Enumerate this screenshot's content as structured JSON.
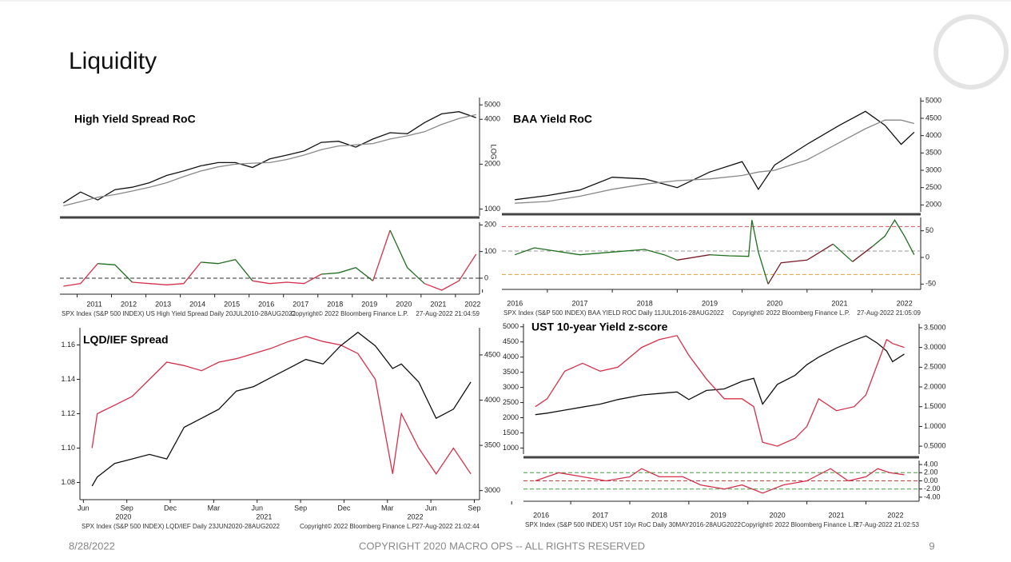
{
  "slide": {
    "title": "Liquidity",
    "date": "8/28/2022",
    "copyright": "COPYRIGHT 2020 MACRO OPS -- ALL RIGHTS RESERVED",
    "page": "9"
  },
  "chart_data": [
    {
      "type": "line",
      "title": "High Yield Spread RoC",
      "axis_note": "LOG",
      "yscale": "log",
      "yaxis_side": "right",
      "x": [
        2010.6,
        2011.1,
        2011.6,
        2012.1,
        2012.6,
        2013.1,
        2013.6,
        2014.1,
        2014.6,
        2015.1,
        2015.6,
        2016.1,
        2016.6,
        2017.1,
        2017.6,
        2018.1,
        2018.6,
        2019.1,
        2019.6,
        2020.1,
        2020.6,
        2021.1,
        2021.6,
        2022.1,
        2022.6
      ],
      "xlim": [
        2010.5,
        2022.7
      ],
      "ylim": [
        900,
        5600
      ],
      "yticks": [
        1000,
        2000,
        4000,
        5000
      ],
      "series": [
        {
          "color": "#111111",
          "values": [
            1100,
            1300,
            1150,
            1350,
            1400,
            1500,
            1680,
            1800,
            1950,
            2050,
            2050,
            1900,
            2170,
            2300,
            2450,
            2800,
            2850,
            2600,
            2950,
            3250,
            3200,
            3800,
            4350,
            4500,
            4100
          ]
        },
        {
          "color": "#888888",
          "values": [
            1050,
            1120,
            1200,
            1250,
            1320,
            1400,
            1500,
            1650,
            1800,
            1920,
            2000,
            2030,
            2050,
            2150,
            2300,
            2500,
            2650,
            2700,
            2750,
            2950,
            3100,
            3300,
            3700,
            4050,
            4300
          ]
        }
      ]
    },
    {
      "type": "signed_line",
      "yaxis_side": "right",
      "x": [
        2010.6,
        2011.1,
        2011.6,
        2012.1,
        2012.6,
        2013.1,
        2013.6,
        2014.1,
        2014.6,
        2015.1,
        2015.6,
        2016.1,
        2016.6,
        2017.1,
        2017.6,
        2018.1,
        2018.6,
        2019.1,
        2019.6,
        2020.1,
        2020.6,
        2021.1,
        2021.6,
        2022.1,
        2022.6
      ],
      "xlim": [
        2010.5,
        2022.7
      ],
      "ylim": [
        -60,
        210
      ],
      "yticks": [
        0,
        100,
        200
      ],
      "xticks": [
        2011,
        2012,
        2013,
        2014,
        2015,
        2016,
        2017,
        2018,
        2019,
        2020,
        2021,
        2022
      ],
      "reference_lines": [
        {
          "value": 0,
          "color": "#333333"
        }
      ],
      "series": [
        {
          "color_positive": "#1f6e1f",
          "color_negative": "#d6304a",
          "values": [
            -30,
            -20,
            55,
            50,
            -15,
            -20,
            -25,
            -20,
            60,
            55,
            70,
            -10,
            -20,
            -15,
            -20,
            15,
            20,
            40,
            -10,
            180,
            40,
            -20,
            -45,
            -10,
            90
          ]
        }
      ],
      "source": "SPX Index (S&P 500 INDEX) US High Yield Spread  Daily 20JUL2010-28AUG2022",
      "source_copyright": "Copyright© 2022 Bloomberg Finance L.P.",
      "timestamp": "27-Aug-2022 21:04:59"
    },
    {
      "type": "line",
      "title": "BAA Yield RoC",
      "yaxis_side": "right",
      "x": [
        2016.5,
        2017,
        2017.5,
        2018,
        2018.5,
        2019,
        2019.5,
        2020,
        2020.25,
        2020.5,
        2021,
        2021.5,
        2021.9,
        2022.2,
        2022.45,
        2022.65
      ],
      "xlim": [
        2016.3,
        2022.75
      ],
      "ylim": [
        1800,
        5100
      ],
      "yticks": [
        2000,
        2500,
        3000,
        3500,
        4000,
        4500,
        5000
      ],
      "series": [
        {
          "color": "#111111",
          "values": [
            2150,
            2270,
            2430,
            2800,
            2750,
            2500,
            2950,
            3250,
            2450,
            3150,
            3750,
            4300,
            4700,
            4300,
            3750,
            4100
          ]
        },
        {
          "color": "#888888",
          "values": [
            2050,
            2100,
            2250,
            2450,
            2600,
            2700,
            2750,
            2850,
            2950,
            3000,
            3300,
            3800,
            4200,
            4450,
            4450,
            4350
          ]
        }
      ]
    },
    {
      "type": "signed_line",
      "yaxis_side": "right",
      "x": [
        2016.5,
        2016.8,
        2017.5,
        2018,
        2018.5,
        2018.8,
        2019,
        2019.5,
        2019.8,
        2020.1,
        2020.15,
        2020.25,
        2020.4,
        2020.6,
        2021,
        2021.4,
        2021.7,
        2022,
        2022.2,
        2022.35,
        2022.5,
        2022.65
      ],
      "xlim": [
        2016.3,
        2022.75
      ],
      "ylim": [
        -60,
        75
      ],
      "yticks": [
        -50,
        0,
        50
      ],
      "xticks": [
        2016,
        2017,
        2018,
        2019,
        2020,
        2021,
        2022
      ],
      "reference_lines": [
        {
          "value": 58,
          "color": "#e05060"
        },
        {
          "value": 12,
          "color": "#999999"
        },
        {
          "value": -32,
          "color": "#e0a040"
        }
      ],
      "series": [
        {
          "color_positive": "#1f6e1f",
          "color_negative": "#7a1a2a",
          "values": [
            5,
            18,
            5,
            10,
            15,
            5,
            -5,
            5,
            3,
            2,
            70,
            10,
            -50,
            -10,
            -5,
            25,
            -8,
            20,
            40,
            70,
            40,
            5
          ]
        }
      ],
      "source": "SPX Index (S&P 500 INDEX) BAA YIELD ROC  Daily 11JUL2016-28AUG2022",
      "source_copyright": "Copyright© 2022 Bloomberg Finance L.P.",
      "timestamp": "27-Aug-2022 21:05:09"
    },
    {
      "type": "line",
      "title": "LQD/IEF Spread",
      "yaxis_side": "left",
      "x": [
        2020.47,
        2020.5,
        2020.6,
        2020.7,
        2020.8,
        2020.9,
        2021.0,
        2021.1,
        2021.2,
        2021.3,
        2021.4,
        2021.5,
        2021.6,
        2021.7,
        2021.8,
        2021.9,
        2022.0,
        2022.1,
        2022.2,
        2022.25,
        2022.35,
        2022.45,
        2022.55,
        2022.65
      ],
      "xlim": [
        2020.4,
        2022.7
      ],
      "ylim": [
        1.07,
        1.17
      ],
      "yticks": [
        1.08,
        {
          "value": 1.1,
          "label": "1.10"
        },
        1.12,
        1.14,
        1.16
      ],
      "y2lim": [
        2900,
        4800
      ],
      "y2ticks": [
        3000,
        3500,
        4000,
        4500
      ],
      "xticks": [
        {
          "value": 2020.42,
          "label": "Jun"
        },
        {
          "value": 2020.67,
          "label": "Sep"
        },
        {
          "value": 2020.92,
          "label": "Dec"
        },
        {
          "value": 2021.17,
          "label": "Mar"
        },
        {
          "value": 2021.42,
          "label": "Jun"
        },
        {
          "value": 2021.67,
          "label": "Sep"
        },
        {
          "value": 2021.92,
          "label": "Dec"
        },
        {
          "value": 2022.17,
          "label": "Mar"
        },
        {
          "value": 2022.42,
          "label": "Jun"
        },
        {
          "value": 2022.67,
          "label": "Sep"
        }
      ],
      "xticks_major": [
        {
          "value": 2020.65,
          "label": "2020"
        },
        {
          "value": 2021.46,
          "label": "2021"
        },
        {
          "value": 2022.33,
          "label": "2022"
        }
      ],
      "series": [
        {
          "color": "#d6304a",
          "values": [
            1.1,
            1.12,
            1.125,
            1.13,
            1.14,
            1.15,
            1.148,
            1.145,
            1.15,
            1.152,
            1.155,
            1.158,
            1.162,
            1.165,
            1.162,
            1.16,
            1.155,
            1.14,
            1.085,
            1.12,
            1.1,
            1.085,
            1.1,
            1.085
          ]
        },
        {
          "color": "#111111",
          "axis": "y2",
          "values": [
            3050,
            3150,
            3300,
            3350,
            3400,
            3350,
            3700,
            3800,
            3900,
            4100,
            4150,
            4250,
            4350,
            4450,
            4400,
            4600,
            4750,
            4600,
            4350,
            4400,
            4200,
            3800,
            3900,
            4200
          ]
        }
      ],
      "source": "SPX Index (S&P 500 INDEX) LQD/IEF  Daily 23JUN2020-28AUG2022",
      "source_copyright": "Copyright© 2022 Bloomberg Finance L.P.",
      "timestamp": "27-Aug-2022 21:02:44"
    },
    {
      "type": "line",
      "title": "UST 10-year Yield z-score",
      "yaxis_side": "left",
      "x": [
        2016.4,
        2016.6,
        2016.9,
        2017.2,
        2017.5,
        2017.8,
        2018.2,
        2018.5,
        2018.8,
        2019.0,
        2019.3,
        2019.6,
        2019.9,
        2020.1,
        2020.25,
        2020.5,
        2020.8,
        2021.0,
        2021.2,
        2021.5,
        2021.8,
        2022.0,
        2022.2,
        2022.35,
        2022.45,
        2022.65
      ],
      "xlim": [
        2016.2,
        2022.9
      ],
      "ylim": [
        800,
        5100
      ],
      "yticks": [
        1000,
        1500,
        2000,
        2500,
        3000,
        3500,
        4000,
        4500,
        5000
      ],
      "y2lim": [
        0.3,
        3.6
      ],
      "y2ticks": [
        {
          "value": 0.5,
          "label": "0.5000"
        },
        {
          "value": 1,
          "label": "1.0000"
        },
        {
          "value": 1.5,
          "label": "1.5000"
        },
        {
          "value": 2,
          "label": "2.0000"
        },
        {
          "value": 2.5,
          "label": "2.5000"
        },
        {
          "value": 3,
          "label": "3.0000"
        },
        {
          "value": 3.5,
          "label": "3.5000"
        }
      ],
      "series": [
        {
          "color": "#111111",
          "values": [
            2100,
            2150,
            2250,
            2350,
            2450,
            2600,
            2750,
            2800,
            2850,
            2600,
            2900,
            2950,
            3200,
            3300,
            2450,
            3100,
            3400,
            3750,
            4000,
            4300,
            4550,
            4700,
            4450,
            4200,
            3850,
            4100
          ]
        },
        {
          "color": "#d6304a",
          "axis": "y2",
          "values": [
            1.5,
            1.7,
            2.4,
            2.6,
            2.4,
            2.5,
            3.0,
            3.2,
            3.3,
            2.8,
            2.2,
            1.7,
            1.7,
            1.5,
            0.6,
            0.5,
            0.7,
            1.0,
            1.7,
            1.4,
            1.5,
            1.8,
            2.6,
            3.2,
            3.1,
            3.0
          ]
        }
      ]
    },
    {
      "type": "line",
      "yaxis_side": "right",
      "x": [
        2016.4,
        2016.8,
        2017.2,
        2017.6,
        2018.0,
        2018.2,
        2018.5,
        2018.9,
        2019.2,
        2019.6,
        2019.9,
        2020.25,
        2020.6,
        2021.0,
        2021.4,
        2021.7,
        2022.0,
        2022.2,
        2022.4,
        2022.65
      ],
      "xlim": [
        2016.2,
        2022.9
      ],
      "ylim": [
        -5,
        5
      ],
      "yticks": [
        {
          "value": 4,
          "label": "4.00"
        },
        {
          "value": 2,
          "label": "2.00"
        },
        {
          "value": 0,
          "label": "0.00"
        },
        {
          "value": -2,
          "label": "-2.00"
        },
        {
          "value": -4,
          "label": "-4.00"
        }
      ],
      "xticks": [
        2016,
        2017,
        2018,
        2019,
        2020,
        2021,
        2022
      ],
      "reference_lines": [
        {
          "value": 2,
          "color": "#40a040"
        },
        {
          "value": 0,
          "color": "#c04040"
        },
        {
          "value": -2,
          "color": "#40a040"
        }
      ],
      "series": [
        {
          "color": "#d6304a",
          "values": [
            0,
            2,
            1,
            0,
            1,
            3,
            1,
            1,
            -1,
            -2,
            -1,
            -3,
            -1,
            0,
            3,
            0,
            1,
            3,
            2,
            1.5
          ]
        }
      ],
      "source": "SPX Index (S&P 500 INDEX) UST 10yr RoC  Daily 30MAY2016-28AUG2022",
      "source_copyright": "Copyright© 2022 Bloomberg Finance L.P.",
      "timestamp": "27-Aug-2022 21:02:53"
    }
  ]
}
